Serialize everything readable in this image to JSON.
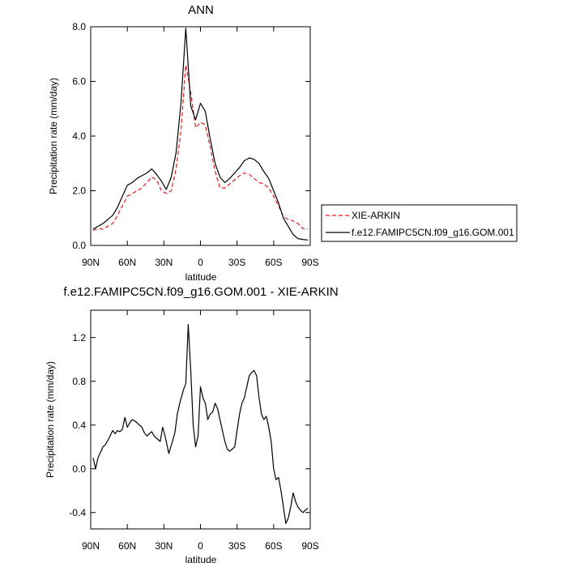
{
  "chart_data": [
    {
      "type": "line",
      "title": "ANN",
      "xlabel": "latitude",
      "ylabel": "Precipitation rate (mm/day)",
      "xlim": [
        90,
        -90
      ],
      "ylim": [
        0,
        8
      ],
      "xticks": [
        90,
        60,
        30,
        0,
        -30,
        -60,
        -90
      ],
      "xtick_labels": [
        "90N",
        "60N",
        "30N",
        "0",
        "30S",
        "60S",
        "90S"
      ],
      "yticks": [
        0,
        2,
        4,
        6,
        8
      ],
      "ytick_labels": [
        "0.0",
        "2.0",
        "4.0",
        "6.0",
        "8.0"
      ],
      "legend_position": "right",
      "series": [
        {
          "name": "XIE-ARKIN",
          "color": "#e41a1c",
          "dash": "dashed",
          "x": [
            88,
            84,
            80,
            76,
            72,
            68,
            64,
            60,
            56,
            52,
            48,
            44,
            40,
            36,
            32,
            28,
            24,
            20,
            16,
            12,
            8,
            4,
            0,
            -4,
            -8,
            -12,
            -16,
            -20,
            -24,
            -28,
            -32,
            -36,
            -40,
            -44,
            -48,
            -52,
            -56,
            -60,
            -64,
            -68,
            -72,
            -76,
            -80,
            -84,
            -88
          ],
          "values": [
            0.55,
            0.62,
            0.6,
            0.7,
            0.8,
            1.1,
            1.45,
            1.8,
            1.9,
            2.0,
            2.1,
            2.3,
            2.5,
            2.4,
            2.0,
            1.9,
            2.0,
            2.8,
            4.2,
            6.6,
            5.6,
            4.3,
            4.5,
            4.4,
            3.6,
            2.7,
            2.1,
            2.1,
            2.25,
            2.4,
            2.55,
            2.65,
            2.6,
            2.45,
            2.3,
            2.25,
            2.1,
            1.8,
            1.45,
            1.05,
            0.95,
            0.9,
            0.8,
            0.62,
            0.58
          ]
        },
        {
          "name": "f.e12.FAMIPC5CN.f09_g16.GOM.001",
          "color": "#000000",
          "dash": "solid",
          "x": [
            88,
            84,
            80,
            76,
            72,
            68,
            64,
            60,
            56,
            52,
            48,
            44,
            40,
            36,
            32,
            28,
            24,
            20,
            16,
            12,
            8,
            4,
            0,
            -4,
            -8,
            -12,
            -16,
            -20,
            -24,
            -28,
            -32,
            -36,
            -40,
            -44,
            -48,
            -52,
            -56,
            -60,
            -64,
            -68,
            -72,
            -76,
            -80,
            -84,
            -88
          ],
          "values": [
            0.6,
            0.7,
            0.8,
            0.95,
            1.1,
            1.4,
            1.8,
            2.2,
            2.3,
            2.45,
            2.55,
            2.65,
            2.8,
            2.6,
            2.35,
            2.05,
            2.5,
            3.4,
            5.2,
            7.95,
            5.1,
            4.6,
            5.2,
            4.9,
            3.9,
            3.0,
            2.5,
            2.3,
            2.45,
            2.65,
            2.85,
            3.1,
            3.2,
            3.15,
            3.0,
            2.7,
            2.45,
            2.0,
            1.55,
            1.0,
            0.7,
            0.4,
            0.25,
            0.22,
            0.2
          ]
        }
      ]
    },
    {
      "type": "line",
      "title": "f.e12.FAMIPC5CN.f09_g16.GOM.001 - XIE-ARKIN",
      "xlabel": "latitude",
      "ylabel": "Precipitation rate (mm/day)",
      "xlim": [
        90,
        -90
      ],
      "ylim": [
        -0.55,
        1.45
      ],
      "xticks": [
        90,
        60,
        30,
        0,
        -30,
        -60,
        -90
      ],
      "xtick_labels": [
        "90N",
        "60N",
        "30N",
        "0",
        "30S",
        "60S",
        "90S"
      ],
      "yticks": [
        -0.4,
        0,
        0.4,
        0.8,
        1.2
      ],
      "ytick_labels": [
        "-0.4",
        "0.0",
        "0.4",
        "0.8",
        "1.2"
      ],
      "series": [
        {
          "color": "#000000",
          "dash": "solid",
          "x": [
            88,
            86,
            84,
            80,
            78,
            75,
            72,
            70,
            68,
            66,
            64,
            62,
            60,
            58,
            56,
            53,
            50,
            48,
            46,
            44,
            42,
            40,
            38,
            36,
            33,
            31,
            29,
            26,
            23,
            21,
            19,
            17,
            14,
            12,
            10,
            8,
            6,
            4,
            2,
            0,
            -2,
            -4,
            -6,
            -8,
            -10,
            -12,
            -14,
            -16,
            -18,
            -20,
            -22,
            -24,
            -26,
            -28,
            -30,
            -32,
            -34,
            -36,
            -38,
            -40,
            -42,
            -44,
            -46,
            -48,
            -50,
            -52,
            -54,
            -56,
            -58,
            -60,
            -62,
            -64,
            -66,
            -68,
            -70,
            -72,
            -74,
            -76,
            -78,
            -80,
            -82,
            -84,
            -86,
            -88
          ],
          "values": [
            0.1,
            0.0,
            0.1,
            0.2,
            0.22,
            0.28,
            0.35,
            0.32,
            0.35,
            0.34,
            0.36,
            0.47,
            0.38,
            0.42,
            0.45,
            0.43,
            0.4,
            0.38,
            0.33,
            0.3,
            0.32,
            0.34,
            0.3,
            0.28,
            0.25,
            0.38,
            0.3,
            0.14,
            0.25,
            0.33,
            0.5,
            0.6,
            0.72,
            0.78,
            1.32,
            0.9,
            0.4,
            0.2,
            0.3,
            0.75,
            0.65,
            0.6,
            0.45,
            0.5,
            0.52,
            0.6,
            0.55,
            0.45,
            0.35,
            0.25,
            0.18,
            0.16,
            0.18,
            0.2,
            0.35,
            0.5,
            0.6,
            0.65,
            0.75,
            0.85,
            0.88,
            0.9,
            0.85,
            0.65,
            0.5,
            0.45,
            0.48,
            0.38,
            0.25,
            0.0,
            -0.1,
            -0.08,
            -0.2,
            -0.35,
            -0.5,
            -0.45,
            -0.35,
            -0.22,
            -0.3,
            -0.35,
            -0.38,
            -0.4,
            -0.38,
            -0.36
          ]
        }
      ]
    }
  ]
}
